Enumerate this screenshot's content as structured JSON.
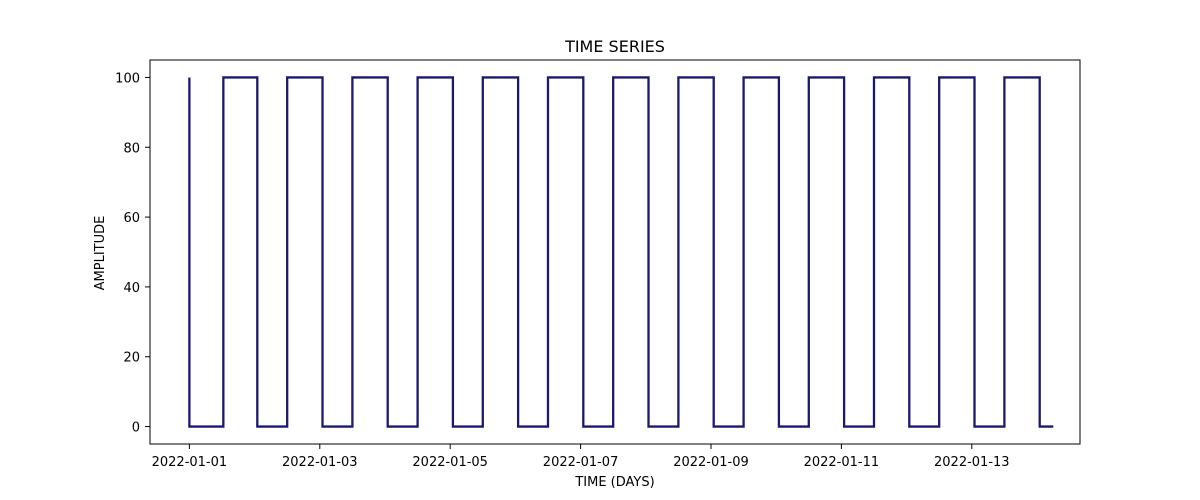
{
  "chart_data": {
    "type": "line",
    "title": "TIME SERIES",
    "xlabel": "TIME (DAYS)",
    "ylabel": "AMPLITUDE",
    "x_tick_labels": [
      "2022-01-01",
      "2022-01-03",
      "2022-01-05",
      "2022-01-07",
      "2022-01-09",
      "2022-01-11",
      "2022-01-13"
    ],
    "y_ticks": [
      0,
      20,
      40,
      60,
      80,
      100
    ],
    "xlim": [
      "2021-12-31T09:30",
      "2022-01-14T15:50"
    ],
    "ylim": [
      -5,
      105
    ],
    "grid": false,
    "legend": "none",
    "line_color": "#191970",
    "series": [
      {
        "x": [
          "2022-01-01T00:00",
          "2022-01-01T00:00",
          "2022-01-01T12:30",
          "2022-01-01T12:30",
          "2022-01-02T01:00",
          "2022-01-02T01:00",
          "2022-01-02T12:00",
          "2022-01-02T12:00",
          "2022-01-03T01:00",
          "2022-01-03T01:00",
          "2022-01-03T12:00",
          "2022-01-03T12:00",
          "2022-01-04T01:00",
          "2022-01-04T01:00",
          "2022-01-04T12:00",
          "2022-01-04T12:00",
          "2022-01-05T01:00",
          "2022-01-05T01:00",
          "2022-01-05T12:00",
          "2022-01-05T12:00",
          "2022-01-06T01:00",
          "2022-01-06T01:00",
          "2022-01-06T12:00",
          "2022-01-06T12:00",
          "2022-01-07T01:00",
          "2022-01-07T01:00",
          "2022-01-07T12:00",
          "2022-01-07T12:00",
          "2022-01-08T01:00",
          "2022-01-08T01:00",
          "2022-01-08T12:00",
          "2022-01-08T12:00",
          "2022-01-09T01:00",
          "2022-01-09T01:00",
          "2022-01-09T12:00",
          "2022-01-09T12:00",
          "2022-01-10T01:00",
          "2022-01-10T01:00",
          "2022-01-10T12:00",
          "2022-01-10T12:00",
          "2022-01-11T01:00",
          "2022-01-11T01:00",
          "2022-01-11T12:00",
          "2022-01-11T12:00",
          "2022-01-12T01:00",
          "2022-01-12T01:00",
          "2022-01-12T12:00",
          "2022-01-12T12:00",
          "2022-01-13T01:00",
          "2022-01-13T01:00",
          "2022-01-13T12:00",
          "2022-01-13T12:00",
          "2022-01-14T01:00",
          "2022-01-14T01:00",
          "2022-01-14T06:00"
        ],
        "values": [
          100,
          0,
          0,
          100,
          100,
          0,
          0,
          100,
          100,
          0,
          0,
          100,
          100,
          0,
          0,
          100,
          100,
          0,
          0,
          100,
          100,
          0,
          0,
          100,
          100,
          0,
          0,
          100,
          100,
          0,
          0,
          100,
          100,
          0,
          0,
          100,
          100,
          0,
          0,
          100,
          100,
          0,
          0,
          100,
          100,
          0,
          0,
          100,
          100,
          0,
          0,
          100,
          100,
          0,
          0
        ]
      }
    ]
  }
}
